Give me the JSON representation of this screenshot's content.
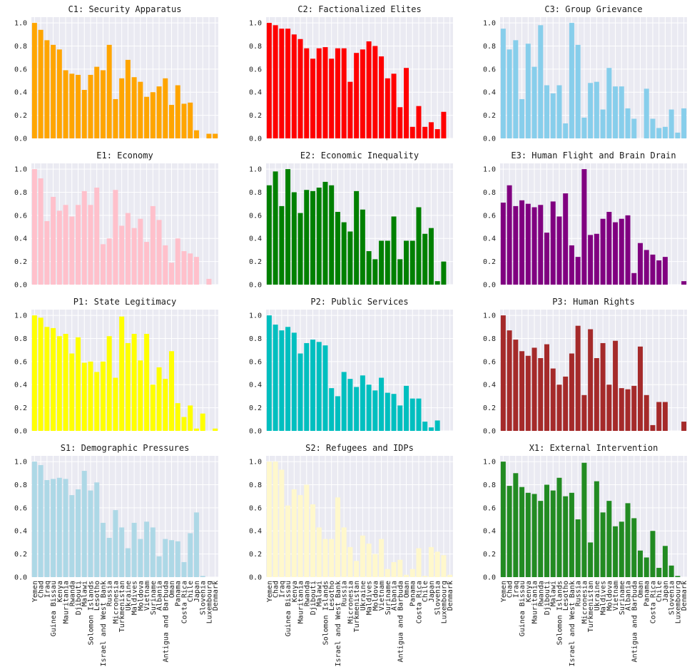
{
  "figure_title": "",
  "chart_data": [
    {
      "type": "bar",
      "title": "C1: Security Apparatus",
      "color": "#ffa500",
      "ylim": [
        0,
        1.05
      ],
      "yticks": [
        "0.0",
        "0.2",
        "0.4",
        "0.6",
        "0.8",
        "1.0"
      ],
      "values": [
        1.0,
        0.94,
        0.85,
        0.81,
        0.77,
        0.59,
        0.56,
        0.55,
        0.42,
        0.55,
        0.62,
        0.59,
        0.81,
        0.34,
        0.52,
        0.68,
        0.53,
        0.49,
        0.36,
        0.4,
        0.45,
        0.52,
        0.29,
        0.46,
        0.3,
        0.31,
        0.07,
        0,
        0.04,
        0.04
      ]
    },
    {
      "type": "bar",
      "title": "C2: Factionalized Elites",
      "color": "#ff0000",
      "ylim": [
        0,
        1.05
      ],
      "yticks": [
        "0.0",
        "0.2",
        "0.4",
        "0.6",
        "0.8",
        "1.0"
      ],
      "values": [
        1.0,
        0.98,
        0.95,
        0.95,
        0.9,
        0.86,
        0.78,
        0.69,
        0.78,
        0.79,
        0.69,
        0.78,
        0.78,
        0.49,
        0.74,
        0.77,
        0.84,
        0.8,
        0.71,
        0.52,
        0.56,
        0.27,
        0.61,
        0.1,
        0.28,
        0.1,
        0.14,
        0.08,
        0.23,
        0
      ]
    },
    {
      "type": "bar",
      "title": "C3: Group Grievance",
      "color": "#87ceeb",
      "ylim": [
        0,
        1.05
      ],
      "yticks": [
        "0.0",
        "0.2",
        "0.4",
        "0.6",
        "0.8",
        "1.0"
      ],
      "values": [
        0.95,
        0.77,
        0.85,
        0.34,
        0.82,
        0.62,
        0.98,
        0.46,
        0.39,
        0.46,
        0.13,
        1.0,
        0.81,
        0.18,
        0.48,
        0.49,
        0.25,
        0.61,
        0.45,
        0.45,
        0.26,
        0.17,
        0,
        0.43,
        0.17,
        0.09,
        0.1,
        0.25,
        0.05,
        0.26
      ]
    },
    {
      "type": "bar",
      "title": "E1: Economy",
      "color": "#ffc0cb",
      "ylim": [
        0,
        1.05
      ],
      "yticks": [
        "0.0",
        "0.2",
        "0.4",
        "0.6",
        "0.8",
        "1.0"
      ],
      "values": [
        1.0,
        0.92,
        0.55,
        0.76,
        0.64,
        0.69,
        0.59,
        0.69,
        0.81,
        0.69,
        0.84,
        0.35,
        0.4,
        0.82,
        0.51,
        0.62,
        0.49,
        0.57,
        0.37,
        0.68,
        0.56,
        0.34,
        0.19,
        0.4,
        0.29,
        0.27,
        0.24,
        0,
        0.05,
        0
      ]
    },
    {
      "type": "bar",
      "title": "E2: Economic Inequality",
      "color": "#008000",
      "ylim": [
        0,
        1.05
      ],
      "yticks": [
        "0.0",
        "0.2",
        "0.4",
        "0.6",
        "0.8",
        "1.0"
      ],
      "values": [
        0.86,
        0.98,
        0.68,
        1.0,
        0.8,
        0.62,
        0.82,
        0.81,
        0.84,
        0.89,
        0.86,
        0.63,
        0.54,
        0.46,
        0.81,
        0.65,
        0.29,
        0.22,
        0.38,
        0.38,
        0.59,
        0.22,
        0.38,
        0.38,
        0.67,
        0.44,
        0.49,
        0.03,
        0.2,
        0
      ]
    },
    {
      "type": "bar",
      "title": "E3: Human Flight and Brain Drain",
      "color": "#800080",
      "ylim": [
        0,
        1.05
      ],
      "yticks": [
        "0.0",
        "0.2",
        "0.4",
        "0.6",
        "0.8",
        "1.0"
      ],
      "values": [
        0.71,
        0.86,
        0.68,
        0.73,
        0.7,
        0.67,
        0.69,
        0.45,
        0.72,
        0.59,
        0.79,
        0.34,
        0.24,
        1.0,
        0.43,
        0.44,
        0.57,
        0.63,
        0.54,
        0.57,
        0.6,
        0.1,
        0.36,
        0.3,
        0.26,
        0.21,
        0.24,
        0,
        0,
        0.03
      ]
    },
    {
      "type": "bar",
      "title": "P1: State Legitimacy",
      "color": "#ffff00",
      "ylim": [
        0,
        1.05
      ],
      "yticks": [
        "0.0",
        "0.2",
        "0.4",
        "0.6",
        "0.8",
        "1.0"
      ],
      "values": [
        1.0,
        0.98,
        0.9,
        0.89,
        0.82,
        0.84,
        0.67,
        0.81,
        0.59,
        0.6,
        0.51,
        0.6,
        0.82,
        0.46,
        0.99,
        0.76,
        0.84,
        0.61,
        0.84,
        0.4,
        0.55,
        0.45,
        0.69,
        0.24,
        0.12,
        0.22,
        0.02,
        0.15,
        0,
        0.02
      ]
    },
    {
      "type": "bar",
      "title": "P2: Public Services",
      "color": "#00bfbf",
      "ylim": [
        0,
        1.05
      ],
      "yticks": [
        "0.0",
        "0.2",
        "0.4",
        "0.6",
        "0.8",
        "1.0"
      ],
      "values": [
        1.0,
        0.92,
        0.87,
        0.9,
        0.85,
        0.67,
        0.76,
        0.79,
        0.77,
        0.74,
        0.37,
        0.3,
        0.51,
        0.45,
        0.38,
        0.48,
        0.4,
        0.35,
        0.46,
        0.33,
        0.32,
        0.22,
        0.39,
        0.28,
        0.28,
        0.08,
        0.03,
        0.09,
        0,
        0
      ]
    },
    {
      "type": "bar",
      "title": "P3: Human Rights",
      "color": "#a52a2a",
      "ylim": [
        0,
        1.05
      ],
      "yticks": [
        "0.0",
        "0.2",
        "0.4",
        "0.6",
        "0.8",
        "1.0"
      ],
      "values": [
        1.0,
        0.87,
        0.79,
        0.69,
        0.65,
        0.72,
        0.63,
        0.75,
        0.54,
        0.4,
        0.47,
        0.67,
        0.91,
        0.31,
        0.88,
        0.63,
        0.76,
        0.4,
        0.78,
        0.37,
        0.36,
        0.39,
        0.73,
        0.31,
        0.05,
        0.25,
        0.25,
        0,
        0,
        0.08
      ]
    },
    {
      "type": "bar",
      "title": "S1: Demographic Pressures",
      "color": "#add8e6",
      "ylim": [
        0,
        1.05
      ],
      "yticks": [
        "0.0",
        "0.2",
        "0.4",
        "0.6",
        "0.8",
        "1.0"
      ],
      "values": [
        1.0,
        0.97,
        0.84,
        0.85,
        0.86,
        0.85,
        0.71,
        0.76,
        0.92,
        0.75,
        0.82,
        0.47,
        0.34,
        0.58,
        0.43,
        0.25,
        0.47,
        0.33,
        0.48,
        0.43,
        0.18,
        0.33,
        0.32,
        0.31,
        0.13,
        0.38,
        0.56,
        0.01,
        0,
        0
      ]
    },
    {
      "type": "bar",
      "title": "S2: Refugees and IDPs",
      "color": "#fff8cc",
      "ylim": [
        0,
        1.05
      ],
      "yticks": [
        "0.0",
        "0.2",
        "0.4",
        "0.6",
        "0.8",
        "1.0"
      ],
      "values": [
        1.0,
        1.0,
        0.93,
        0.62,
        0.76,
        0.71,
        0.8,
        0.63,
        0.43,
        0.33,
        0.33,
        0.69,
        0.43,
        0.26,
        0.14,
        0.36,
        0.29,
        0.2,
        0.33,
        0.07,
        0.13,
        0.15,
        0.02,
        0.07,
        0.25,
        0.01,
        0.26,
        0.22,
        0.19,
        0.02
      ]
    },
    {
      "type": "bar",
      "title": "X1: External Intervention",
      "color": "#228b22",
      "ylim": [
        0,
        1.05
      ],
      "yticks": [
        "0.0",
        "0.2",
        "0.4",
        "0.6",
        "0.8",
        "1.0"
      ],
      "values": [
        1.0,
        0.79,
        0.9,
        0.78,
        0.73,
        0.72,
        0.66,
        0.8,
        0.75,
        0.86,
        0.7,
        0.73,
        0.5,
        0.99,
        0.3,
        0.83,
        0.56,
        0.66,
        0.44,
        0.48,
        0.64,
        0.51,
        0.23,
        0.17,
        0.4,
        0.08,
        0.27,
        0.1,
        0.01,
        0
      ]
    }
  ],
  "shared_categories": [
    "Yemen",
    "Chad",
    "Iraq",
    "Guinea Bissau",
    "Kenya",
    "Mauritania",
    "Rwanda",
    "Djibouti",
    "Malawi",
    "Solomon Islands",
    "Lesotho",
    "Israel and West Bank",
    "Russia",
    "Micronesia",
    "Turkmenistan",
    "Ukraine",
    "Maldives",
    "Moldova",
    "Vietnam",
    "Suriname",
    "Albania",
    "Antigua and Barbuda",
    "Oman",
    "Panama",
    "Costa Rica",
    "Chile",
    "Japan",
    "Slovenia",
    "Luxembourg",
    "Denmark"
  ]
}
